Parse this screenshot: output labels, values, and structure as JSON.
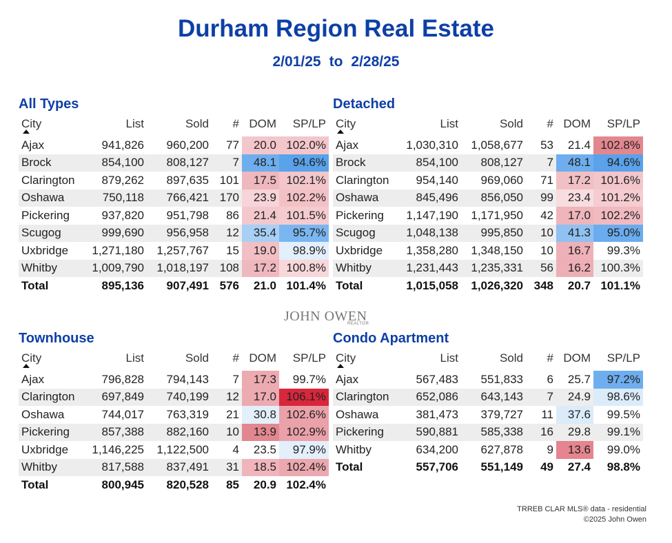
{
  "header": {
    "title": "Durham Region Real Estate",
    "date_from": "2/01/25",
    "to": "to",
    "date_to": "2/28/25"
  },
  "columns": [
    "City",
    "List",
    "Sold",
    "#",
    "DOM",
    "SP/LP"
  ],
  "tables": [
    {
      "title": "All Types",
      "rows": [
        [
          "Ajax",
          "941,826",
          "960,200",
          "77",
          "20.0",
          "102.0%"
        ],
        [
          "Brock",
          "854,100",
          "808,127",
          "7",
          "48.1",
          "94.6%"
        ],
        [
          "Clarington",
          "879,262",
          "897,635",
          "101",
          "17.5",
          "102.1%"
        ],
        [
          "Oshawa",
          "750,118",
          "766,421",
          "170",
          "23.9",
          "102.2%"
        ],
        [
          "Pickering",
          "937,820",
          "951,798",
          "86",
          "21.4",
          "101.5%"
        ],
        [
          "Scugog",
          "999,690",
          "956,958",
          "12",
          "35.4",
          "95.7%"
        ],
        [
          "Uxbridge",
          "1,271,180",
          "1,257,767",
          "15",
          "19.0",
          "98.9%"
        ],
        [
          "Whitby",
          "1,009,790",
          "1,018,197",
          "108",
          "17.2",
          "100.8%"
        ]
      ],
      "cell_colors": [
        [
          "#f3c6cb",
          "#f3c6cb"
        ],
        [
          "#6eaeee",
          "#5aa2ea"
        ],
        [
          "#efb8be",
          "#f3c6cb"
        ],
        [
          "#f6d4d7",
          "#f2c1c6"
        ],
        [
          "#f3c8cc",
          "#f4cbcf"
        ],
        [
          "#a8cff5",
          "#7ab6f0"
        ],
        [
          "#f1bfc4",
          "#e3effb"
        ],
        [
          "#efb8be",
          "#f7d7da"
        ]
      ],
      "total": [
        "Total",
        "895,136",
        "907,491",
        "576",
        "21.0",
        "101.4%"
      ]
    },
    {
      "title": "Detached",
      "rows": [
        [
          "Ajax",
          "1,030,310",
          "1,058,677",
          "53",
          "21.4",
          "102.8%"
        ],
        [
          "Brock",
          "854,100",
          "808,127",
          "7",
          "48.1",
          "94.6%"
        ],
        [
          "Clarington",
          "954,140",
          "969,060",
          "71",
          "17.2",
          "101.6%"
        ],
        [
          "Oshawa",
          "845,496",
          "856,050",
          "99",
          "23.4",
          "101.2%"
        ],
        [
          "Pickering",
          "1,147,190",
          "1,171,950",
          "42",
          "17.0",
          "102.2%"
        ],
        [
          "Scugog",
          "1,048,138",
          "995,850",
          "10",
          "41.3",
          "95.0%"
        ],
        [
          "Uxbridge",
          "1,358,280",
          "1,348,150",
          "10",
          "16.7",
          "99.3%"
        ],
        [
          "Whitby",
          "1,231,443",
          "1,235,331",
          "56",
          "16.2",
          "100.3%"
        ]
      ],
      "cell_colors": [
        [
          null,
          "#e3878f"
        ],
        [
          "#6eaeee",
          "#5aa2ea"
        ],
        [
          "#f1c0c5",
          "#f3c6cb"
        ],
        [
          "#f8dde0",
          "#f5ccd0"
        ],
        [
          "#eeb5bb",
          "#f0bac0"
        ],
        [
          "#8fc1f2",
          "#6aacee"
        ],
        [
          "#eeb1b7",
          null
        ],
        [
          "#edaeb5",
          null
        ]
      ],
      "total": [
        "Total",
        "1,015,058",
        "1,026,320",
        "348",
        "20.7",
        "101.1%"
      ]
    },
    {
      "title": "Townhouse",
      "rows": [
        [
          "Ajax",
          "796,828",
          "794,143",
          "7",
          "17.3",
          "99.7%"
        ],
        [
          "Clarington",
          "697,849",
          "740,199",
          "12",
          "17.0",
          "106.1%"
        ],
        [
          "Oshawa",
          "744,017",
          "763,319",
          "21",
          "30.8",
          "102.6%"
        ],
        [
          "Pickering",
          "857,388",
          "882,160",
          "10",
          "13.9",
          "102.9%"
        ],
        [
          "Uxbridge",
          "1,146,225",
          "1,122,500",
          "4",
          "23.5",
          "97.9%"
        ],
        [
          "Whitby",
          "817,588",
          "837,491",
          "31",
          "18.5",
          "102.4%"
        ]
      ],
      "cell_colors": [
        [
          "#ecaab1",
          null
        ],
        [
          "#ecaab1",
          "#d8263b"
        ],
        [
          "#e3effb",
          "#eaa1a9"
        ],
        [
          "#e28790",
          "#eaa1a9"
        ],
        [
          null,
          "#e3effb"
        ],
        [
          "#efb5bb",
          "#eca8af"
        ]
      ],
      "total": [
        "Total",
        "800,945",
        "820,528",
        "85",
        "20.9",
        "102.4%"
      ]
    },
    {
      "title": "Condo Apartment",
      "rows": [
        [
          "Ajax",
          "567,483",
          "551,833",
          "6",
          "25.7",
          "97.2%"
        ],
        [
          "Clarington",
          "652,086",
          "643,143",
          "7",
          "24.9",
          "98.6%"
        ],
        [
          "Oshawa",
          "381,473",
          "379,727",
          "11",
          "37.6",
          "99.5%"
        ],
        [
          "Pickering",
          "590,881",
          "585,338",
          "16",
          "29.8",
          "99.1%"
        ],
        [
          "Whitby",
          "634,200",
          "627,878",
          "9",
          "13.6",
          "99.0%"
        ]
      ],
      "cell_colors": [
        [
          null,
          "#6eaeee"
        ],
        [
          null,
          "#dcebfa"
        ],
        [
          "#dcebfa",
          null
        ],
        [
          null,
          null
        ],
        [
          "#e5858f",
          null
        ]
      ],
      "total": [
        "Total",
        "557,706",
        "551,149",
        "49",
        "27.4",
        "98.8%"
      ]
    }
  ],
  "logo": {
    "name": "JOHN OWEN",
    "sub": "REALTOR"
  },
  "footer": {
    "source": "TRREB CLAR MLS® data - residential",
    "copyright": "©2025 John Owen"
  }
}
